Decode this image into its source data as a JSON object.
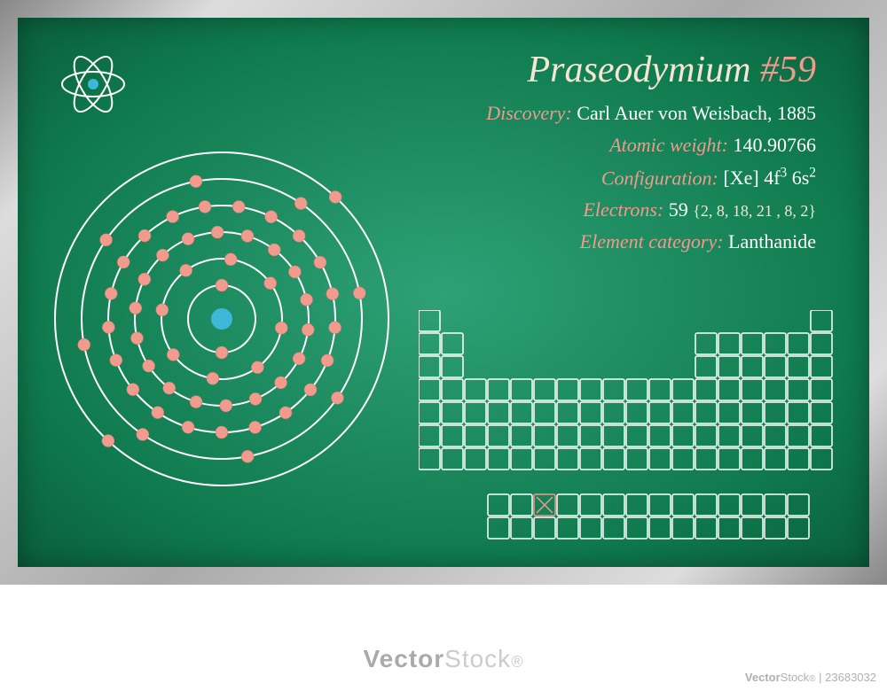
{
  "element": {
    "name": "Praseodymium",
    "atomic_number": "#59",
    "title_name_color": "#f5e6d3",
    "title_num_color": "#f19a8e",
    "title_fontsize": 42
  },
  "facts": [
    {
      "label": "Discovery:",
      "value": "Carl Auer von Weisbach, 1885"
    },
    {
      "label": "Atomic weight:",
      "value": "140.90766"
    },
    {
      "label": "Configuration:",
      "value": "[Xe] 4f³ 6s²"
    },
    {
      "label": "Electrons:",
      "value": "59",
      "extra": "{2, 8, 18, 21 , 8, 2}"
    },
    {
      "label": "Element category:",
      "value": "Lanthanide"
    }
  ],
  "fact_label_color": "#f19a8e",
  "fact_value_color": "#ffffff",
  "fact_extra_color": "#f5e6d3",
  "fact_fontsize": 22,
  "atom_model": {
    "shells": [
      2,
      8,
      18,
      21,
      8,
      2
    ],
    "shell_radii": [
      38,
      68,
      98,
      128,
      158,
      188
    ],
    "nucleus_radius": 12,
    "nucleus_color": "#3db8d8",
    "electron_radius": 7,
    "electron_color": "#f19a8e",
    "orbit_color": "#ffffff",
    "orbit_width": 2
  },
  "atom_icon": {
    "orbit_color": "#ffffff",
    "nucleus_color": "#3db8d8"
  },
  "periodic_table": {
    "cell_size": 24,
    "cell_gap": 2,
    "stroke_color": "#ffffff",
    "highlight_color": "#f19a8e",
    "highlight_pos": {
      "row": 8,
      "col": 5
    },
    "layout": [
      {
        "row": 0,
        "cols": [
          0,
          17
        ]
      },
      {
        "row": 1,
        "cols": [
          0,
          1,
          12,
          13,
          14,
          15,
          16,
          17
        ]
      },
      {
        "row": 2,
        "cols": [
          0,
          1,
          12,
          13,
          14,
          15,
          16,
          17
        ]
      },
      {
        "row": 3,
        "cols": [
          0,
          1,
          2,
          3,
          4,
          5,
          6,
          7,
          8,
          9,
          10,
          11,
          12,
          13,
          14,
          15,
          16,
          17
        ]
      },
      {
        "row": 4,
        "cols": [
          0,
          1,
          2,
          3,
          4,
          5,
          6,
          7,
          8,
          9,
          10,
          11,
          12,
          13,
          14,
          15,
          16,
          17
        ]
      },
      {
        "row": 5,
        "cols": [
          0,
          1,
          2,
          3,
          4,
          5,
          6,
          7,
          8,
          9,
          10,
          11,
          12,
          13,
          14,
          15,
          16,
          17
        ]
      },
      {
        "row": 6,
        "cols": [
          0,
          1,
          2,
          3,
          4,
          5,
          6,
          7,
          8,
          9,
          10,
          11,
          12,
          13,
          14,
          15,
          16,
          17
        ]
      },
      {
        "row": 8,
        "cols": [
          3,
          4,
          5,
          6,
          7,
          8,
          9,
          10,
          11,
          12,
          13,
          14,
          15,
          16
        ]
      },
      {
        "row": 9,
        "cols": [
          3,
          4,
          5,
          6,
          7,
          8,
          9,
          10,
          11,
          12,
          13,
          14,
          15,
          16
        ]
      }
    ]
  },
  "board_bg_center": "#2fa176",
  "board_bg_edge": "#0a5f3c",
  "frame_colors": [
    "#888888",
    "#dddddd",
    "#aaaaaa"
  ],
  "watermark": {
    "brand1": "Vector",
    "brand2": "Stock",
    "id": "23683032",
    "color": "#cccccc"
  }
}
